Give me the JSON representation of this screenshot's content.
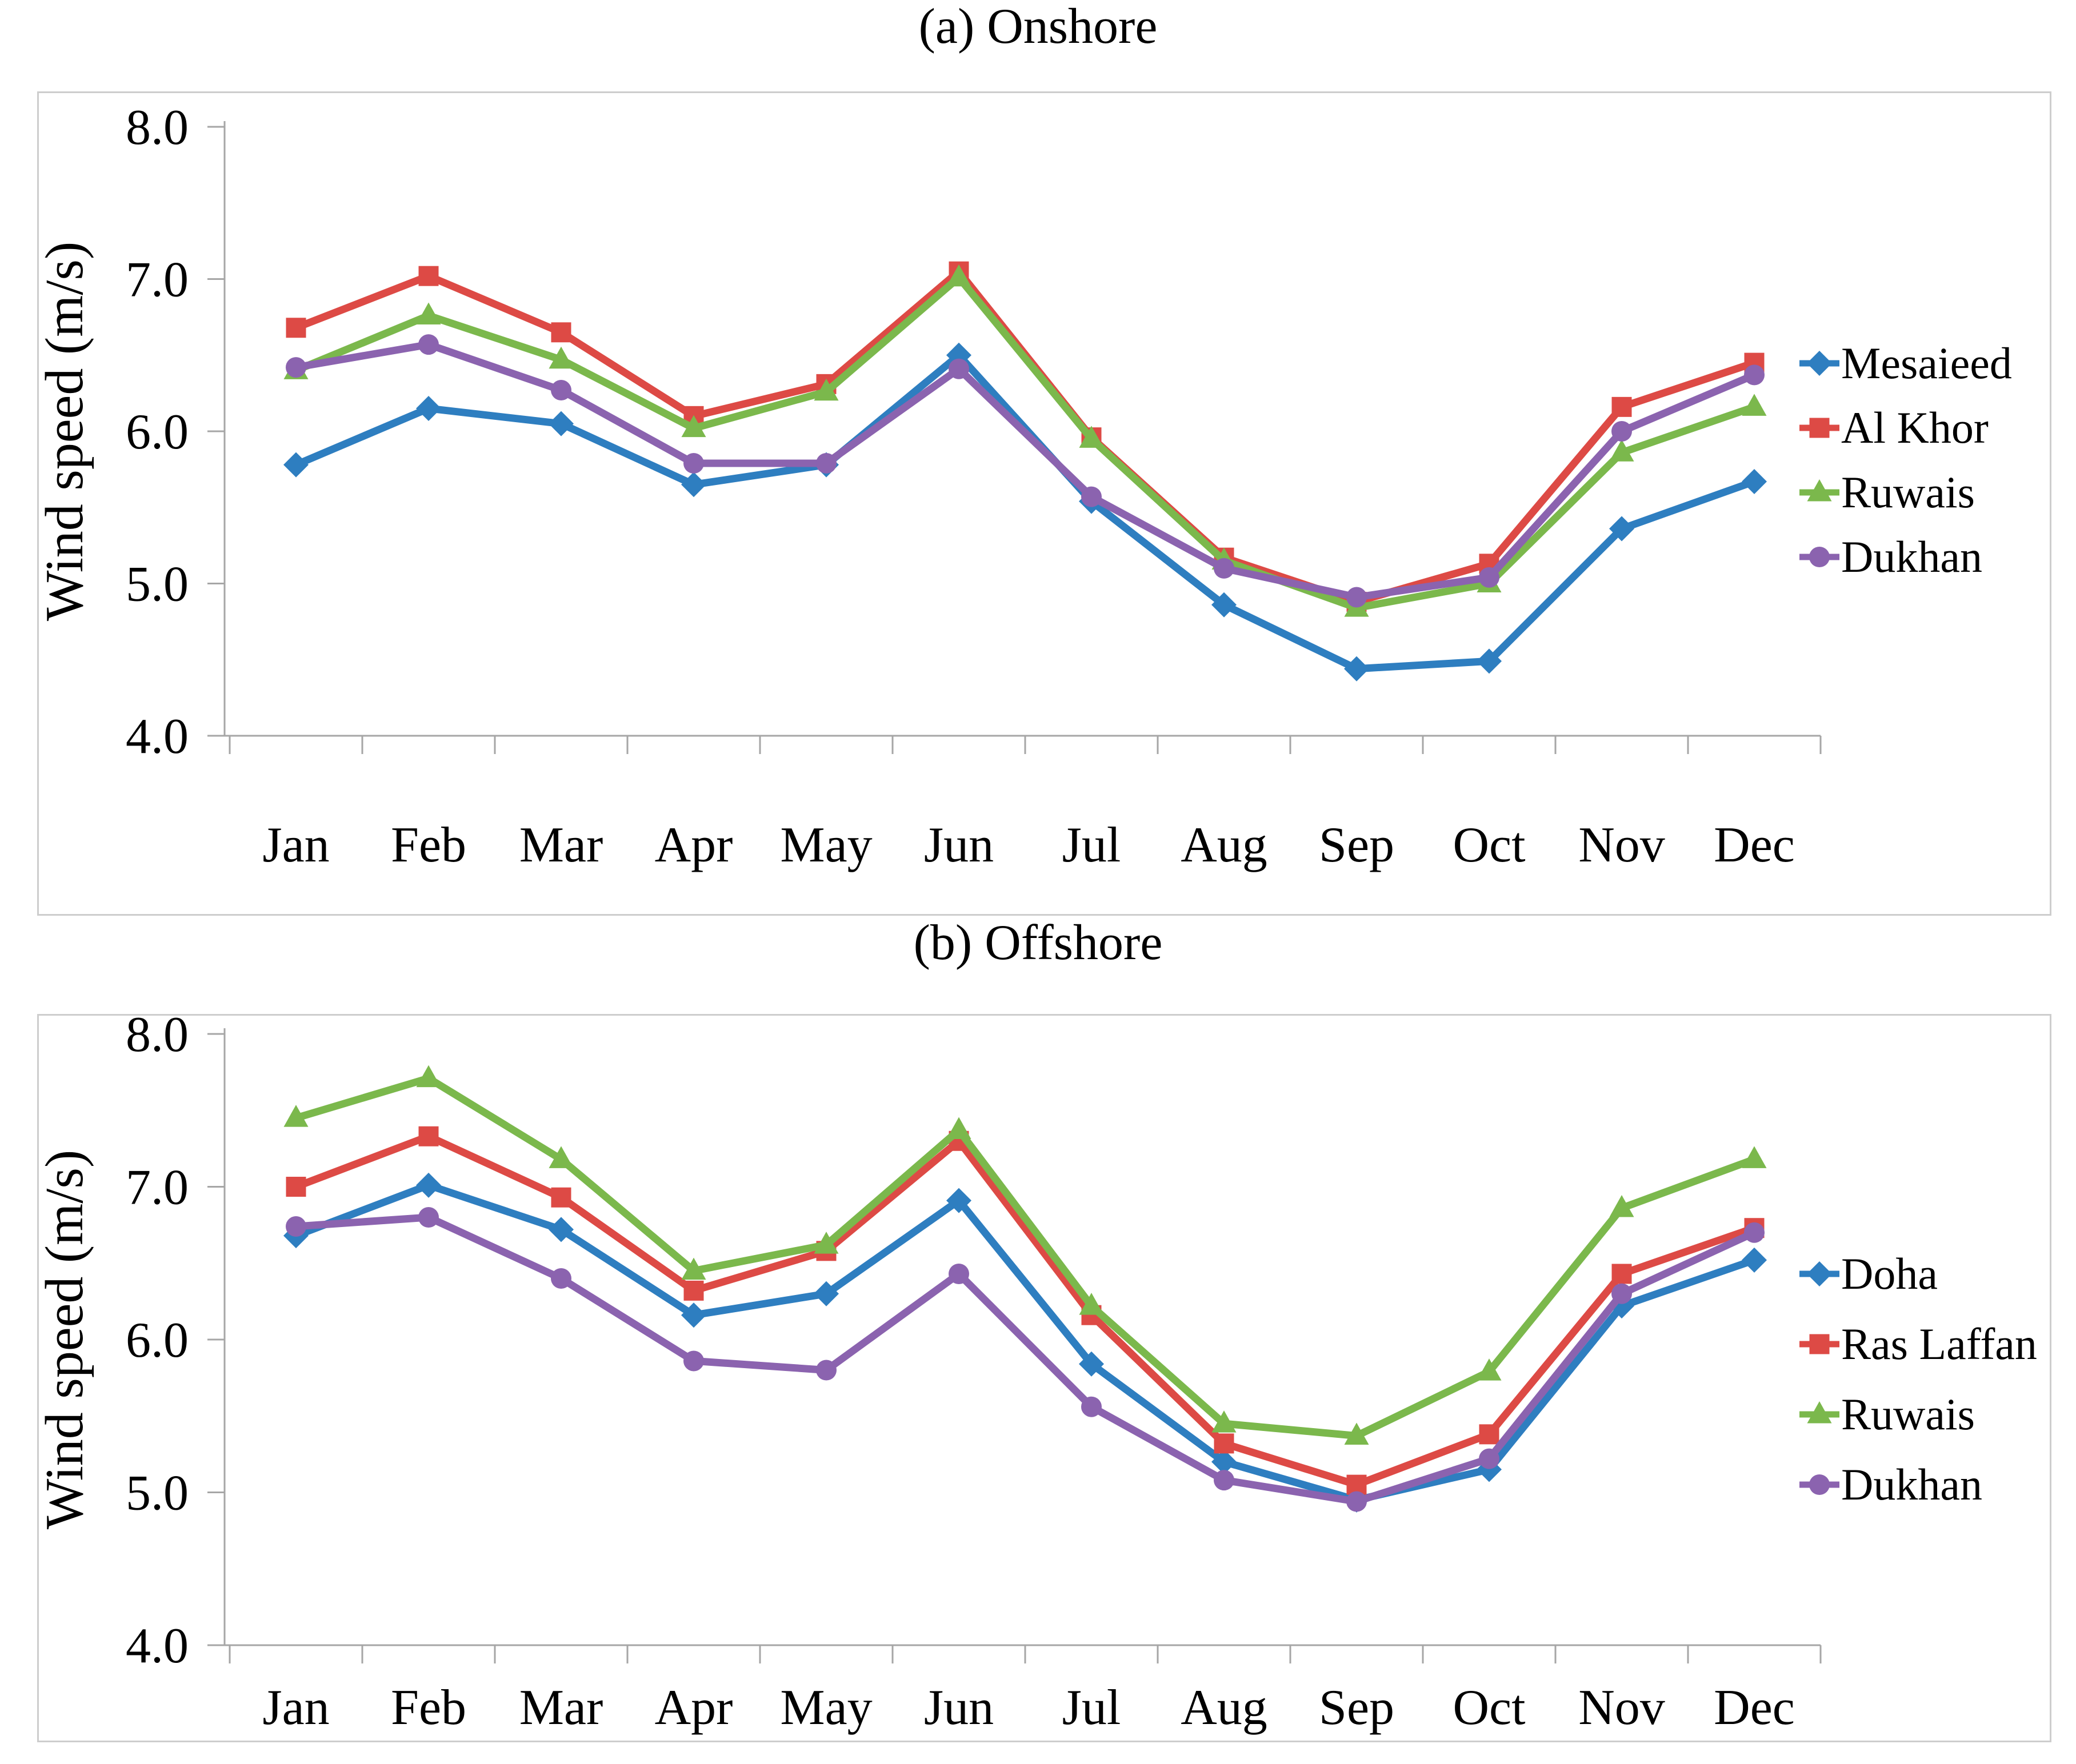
{
  "figure": {
    "background": "#ffffff",
    "axis_color": "#a6a6a6",
    "frame_color": "#cdcdcd",
    "text_color": "#000000"
  },
  "chart_data": [
    {
      "type": "line",
      "title": "(a) Onshore",
      "xlabel": "",
      "ylabel": "Wind speed (m/s)",
      "categories": [
        "Jan",
        "Feb",
        "Mar",
        "Apr",
        "May",
        "Jun",
        "Jul",
        "Aug",
        "Sep",
        "Oct",
        "Nov",
        "Dec"
      ],
      "ylim": [
        4.0,
        8.0
      ],
      "ytick_labels": [
        "8.0",
        "7.0",
        "6.0",
        "5.0",
        "4.0"
      ],
      "ytick_values": [
        8.0,
        7.0,
        6.0,
        5.0,
        4.0
      ],
      "grid": false,
      "legend_position": "right",
      "series": [
        {
          "name": "Mesaieed",
          "color": "#2e7ec0",
          "marker": "diamond",
          "values": [
            5.78,
            6.15,
            6.05,
            5.65,
            5.78,
            6.5,
            5.54,
            4.86,
            4.44,
            4.49,
            5.36,
            5.67
          ]
        },
        {
          "name": "Al Khor",
          "color": "#dd4a45",
          "marker": "square",
          "values": [
            6.68,
            7.02,
            6.65,
            6.1,
            6.31,
            7.05,
            5.96,
            5.17,
            4.88,
            5.13,
            6.16,
            6.45
          ]
        },
        {
          "name": "Ruwais",
          "color": "#7bb84c",
          "marker": "triangle",
          "values": [
            6.4,
            6.76,
            6.47,
            6.02,
            6.26,
            7.01,
            5.95,
            5.15,
            4.84,
            5.0,
            5.86,
            6.16
          ]
        },
        {
          "name": "Dukhan",
          "color": "#8b63af",
          "marker": "circle",
          "values": [
            6.42,
            6.57,
            6.27,
            5.79,
            5.79,
            6.41,
            5.57,
            5.1,
            4.91,
            5.04,
            6.0,
            6.37
          ]
        }
      ]
    },
    {
      "type": "line",
      "title": "(b) Offshore",
      "xlabel": "",
      "ylabel": "Wind speed (m/s)",
      "categories": [
        "Jan",
        "Feb",
        "Mar",
        "Apr",
        "May",
        "Jun",
        "Jul",
        "Aug",
        "Sep",
        "Oct",
        "Nov",
        "Dec"
      ],
      "ylim": [
        4.0,
        8.0
      ],
      "ytick_labels": [
        "8.0",
        "7.0",
        "6.0",
        "5.0",
        "4.0"
      ],
      "ytick_values": [
        8.0,
        7.0,
        6.0,
        5.0,
        4.0
      ],
      "grid": false,
      "legend_position": "right",
      "series": [
        {
          "name": "Doha",
          "color": "#2e7ec0",
          "marker": "diamond",
          "values": [
            6.68,
            7.01,
            6.72,
            6.16,
            6.3,
            6.91,
            5.84,
            5.2,
            4.95,
            5.15,
            6.22,
            6.52
          ]
        },
        {
          "name": "Ras Laffan",
          "color": "#dd4a45",
          "marker": "square",
          "values": [
            7.0,
            7.33,
            6.93,
            6.32,
            6.58,
            7.3,
            6.16,
            5.32,
            5.05,
            5.38,
            6.43,
            6.73
          ]
        },
        {
          "name": "Ruwais",
          "color": "#7bb84c",
          "marker": "triangle",
          "values": [
            7.45,
            7.71,
            7.18,
            6.45,
            6.62,
            7.37,
            6.22,
            5.45,
            5.37,
            5.79,
            6.86,
            7.18
          ]
        },
        {
          "name": "Dukhan",
          "color": "#8b63af",
          "marker": "circle",
          "values": [
            6.74,
            6.8,
            6.4,
            5.86,
            5.8,
            6.43,
            5.56,
            5.08,
            4.94,
            5.22,
            6.3,
            6.7
          ]
        }
      ]
    }
  ]
}
